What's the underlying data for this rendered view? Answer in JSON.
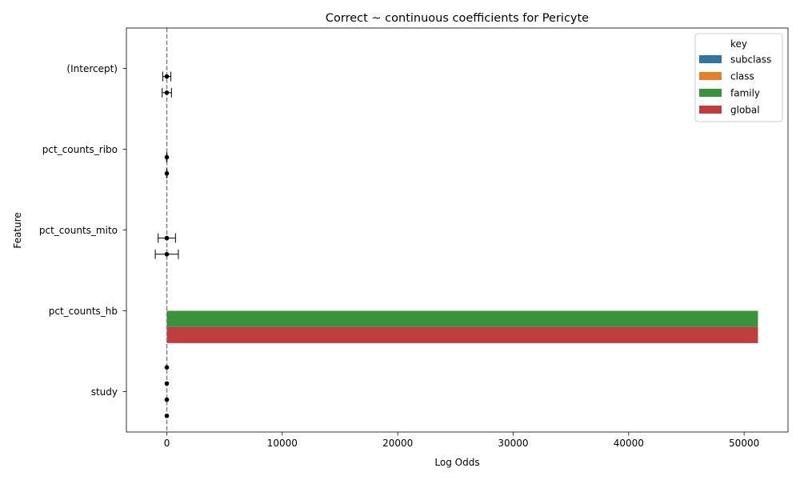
{
  "chart_data": {
    "type": "bar",
    "orientation": "horizontal",
    "title": "Correct ~ continuous coefficients for Pericyte",
    "xlabel": "Log Odds",
    "ylabel": "Feature",
    "xlim": [
      -3500,
      53800
    ],
    "xticks": [
      0,
      10000,
      20000,
      30000,
      40000,
      50000
    ],
    "zero_line": true,
    "grid": false,
    "legend": {
      "title": "key",
      "placement": "top-right"
    },
    "categories": [
      "(Intercept)",
      "pct_counts_ribo",
      "pct_counts_mito",
      "pct_counts_hb",
      "study"
    ],
    "series": [
      {
        "name": "subclass",
        "color": "#3274a1",
        "values": [
          0,
          0,
          0,
          0,
          0
        ]
      },
      {
        "name": "class",
        "color": "#e1812c",
        "values": [
          5,
          0,
          0,
          5,
          0
        ]
      },
      {
        "name": "family",
        "color": "#3a923a",
        "values": [
          0,
          0,
          0,
          51200,
          0
        ]
      },
      {
        "name": "global",
        "color": "#c03d3e",
        "values": [
          0,
          0,
          0,
          51200,
          0
        ]
      }
    ],
    "error_points": [
      {
        "category": "(Intercept)",
        "series": "family",
        "value": 0,
        "err": 350
      },
      {
        "category": "(Intercept)",
        "series": "global",
        "value": 0,
        "err": 400
      },
      {
        "category": "pct_counts_ribo",
        "series": "family",
        "value": 0,
        "err": 15
      },
      {
        "category": "pct_counts_ribo",
        "series": "global",
        "value": 0,
        "err": 15
      },
      {
        "category": "pct_counts_mito",
        "series": "family",
        "value": 0,
        "err": 750
      },
      {
        "category": "pct_counts_mito",
        "series": "global",
        "value": 0,
        "err": 1000
      },
      {
        "category": "study",
        "series": "subclass",
        "value": 0,
        "err": 0
      },
      {
        "category": "study",
        "series": "class",
        "value": 0,
        "err": 0
      },
      {
        "category": "study",
        "series": "family",
        "value": 0,
        "err": 0
      },
      {
        "category": "study",
        "series": "global",
        "value": 0,
        "err": 0
      }
    ]
  }
}
